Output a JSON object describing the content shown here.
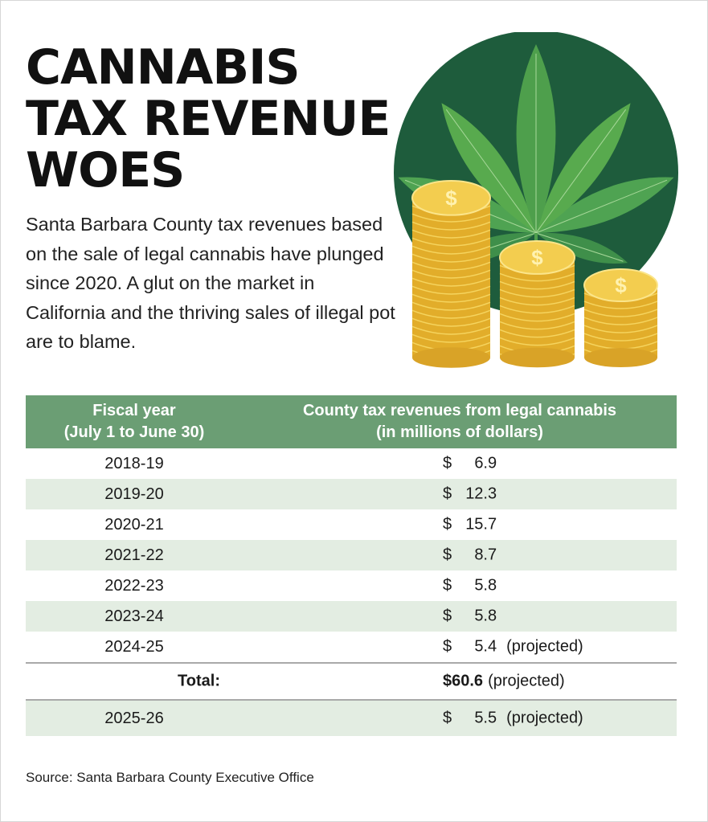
{
  "title_lines": [
    "CANNABIS",
    "TAX REVENUE",
    "WOES"
  ],
  "intro": "Santa Barbara County tax revenues based on the sale of legal cannabis have plunged since 2020. A glut on the market in California and the thriving sales of illegal pot are to blame.",
  "colors": {
    "header": "#6b9e74",
    "alt_row": "#e3ede2",
    "circle": "#1e5c3c",
    "coin": "#e8b62e"
  },
  "illustration": {
    "icons": [
      "cannabis-leaf-icon",
      "coin-stack-icon"
    ],
    "coin_symbol": "$"
  },
  "chart_data": {
    "type": "table",
    "columns": [
      "Fiscal year\n(July 1 to  June 30)",
      "County tax revenues from legal cannabis\n(in millions of dollars)"
    ],
    "header": {
      "col1_line1": "Fiscal year",
      "col1_line2": "(July 1 to  June 30)",
      "col2_line1": "County tax revenues from legal cannabis",
      "col2_line2": "(in millions of dollars)"
    },
    "rows": [
      {
        "year": "2018-19",
        "currency": "$",
        "value": "6.9",
        "note": ""
      },
      {
        "year": "2019-20",
        "currency": "$",
        "value": "12.3",
        "note": ""
      },
      {
        "year": "2020-21",
        "currency": "$",
        "value": "15.7",
        "note": ""
      },
      {
        "year": "2021-22",
        "currency": "$",
        "value": "8.7",
        "note": ""
      },
      {
        "year": "2022-23",
        "currency": "$",
        "value": "5.8",
        "note": ""
      },
      {
        "year": "2023-24",
        "currency": "$",
        "value": "5.8",
        "note": ""
      },
      {
        "year": "2024-25",
        "currency": "$",
        "value": "5.4",
        "note": "(projected)"
      }
    ],
    "total": {
      "label": "Total:",
      "value": "$60.6",
      "note": "(projected)"
    },
    "extra_row": {
      "year": "2025-26",
      "currency": "$",
      "value": "5.5",
      "note": "(projected)"
    }
  },
  "source": "Source: Santa Barbara County Executive Office"
}
